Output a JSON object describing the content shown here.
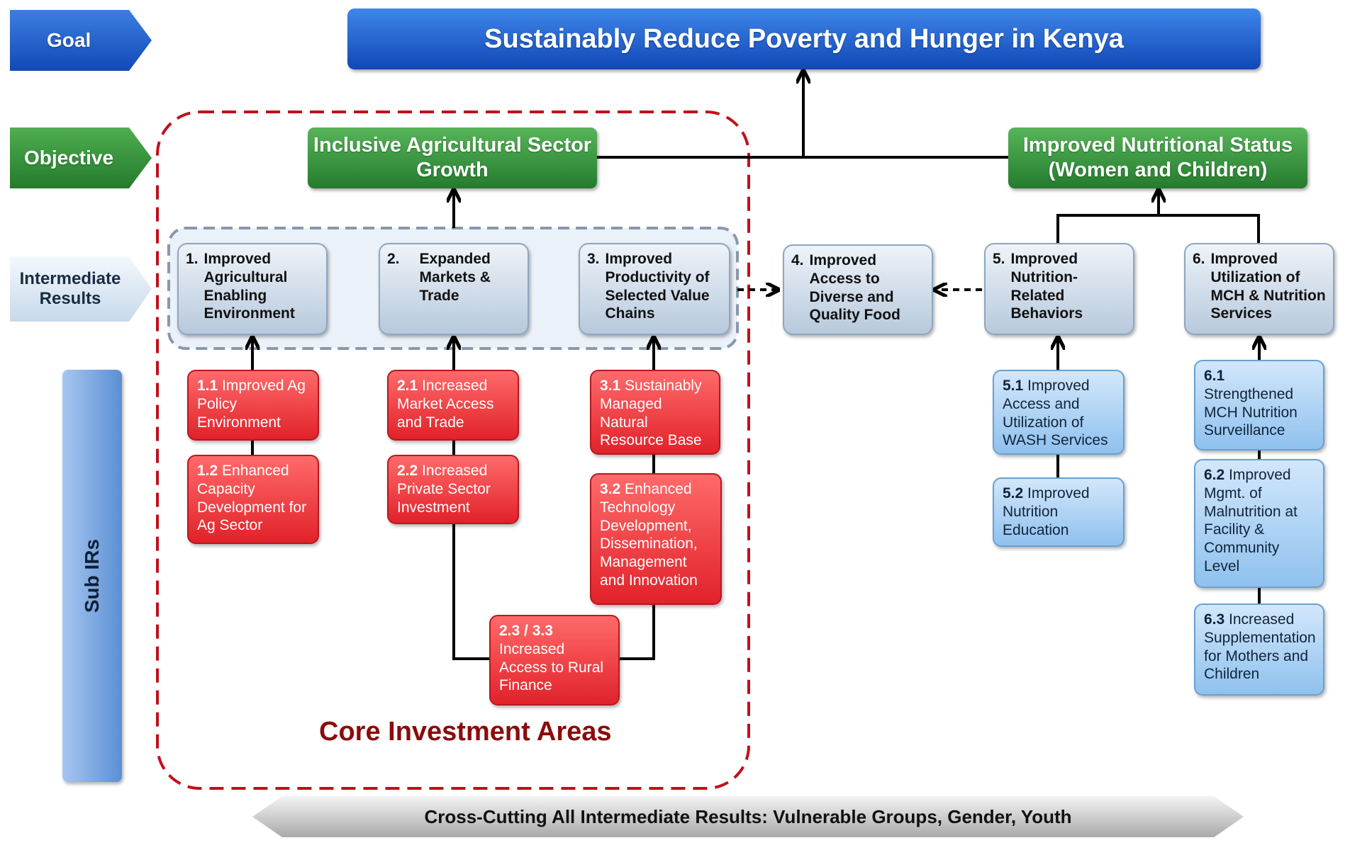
{
  "side_labels": {
    "goal": "Goal",
    "objective": "Objective",
    "intermediate_results": "Intermediate Results",
    "sub_irs": "Sub IRs"
  },
  "goal": "Sustainably Reduce Poverty and Hunger in Kenya",
  "objectives": {
    "left": "Inclusive Agricultural Sector Growth",
    "right": "Improved Nutritional Status (Women and Children)"
  },
  "intermediate_results": [
    {
      "num": "1.",
      "text": "Improved Agricultural Enabling Environment"
    },
    {
      "num": "2.",
      "text": "Expanded Markets & Trade"
    },
    {
      "num": "3.",
      "text": "Improved Productivity of Selected Value Chains"
    },
    {
      "num": "4.",
      "text": "Improved Access to Diverse and Quality Food"
    },
    {
      "num": "5.",
      "text": "Improved Nutrition-Related Behaviors"
    },
    {
      "num": "6.",
      "text": "Improved Utilization of MCH & Nutrition Services"
    }
  ],
  "sub_irs": [
    {
      "code": "1.1",
      "text": "Improved Ag Policy Environment"
    },
    {
      "code": "1.2",
      "text": "Enhanced Capacity Development for Ag Sector"
    },
    {
      "code": "2.1",
      "text": "Increased Market Access and Trade"
    },
    {
      "code": "2.2",
      "text": "Increased Private Sector Investment"
    },
    {
      "code": "3.1",
      "text": "Sustainably Managed Natural Resource Base"
    },
    {
      "code": "3.2",
      "text": "Enhanced Technology Development, Dissemination, Management and Innovation"
    },
    {
      "code": "2.3 / 3.3",
      "text": "Increased Access to Rural Finance"
    },
    {
      "code": "5.1",
      "text": "Improved Access and Utilization of WASH Services"
    },
    {
      "code": "5.2",
      "text": "Improved Nutrition Education"
    },
    {
      "code": "6.1",
      "text": "Strengthened MCH Nutrition Surveillance"
    },
    {
      "code": "6.2",
      "text": "Improved Mgmt. of Malnutrition at Facility & Community Level"
    },
    {
      "code": "6.3",
      "text": "Increased Supplementation for Mothers and Children"
    }
  ],
  "core_label": "Core Investment Areas",
  "cross_cutting": "Cross-Cutting All Intermediate Results: Vulnerable Groups, Gender, Youth",
  "colors": {
    "goal_blue": "#1a56c8",
    "objective_green": "#2e8b3a",
    "core_red": "#e1222a",
    "nutrition_blue": "#8fc1ee",
    "core_border": "#c0101a"
  }
}
